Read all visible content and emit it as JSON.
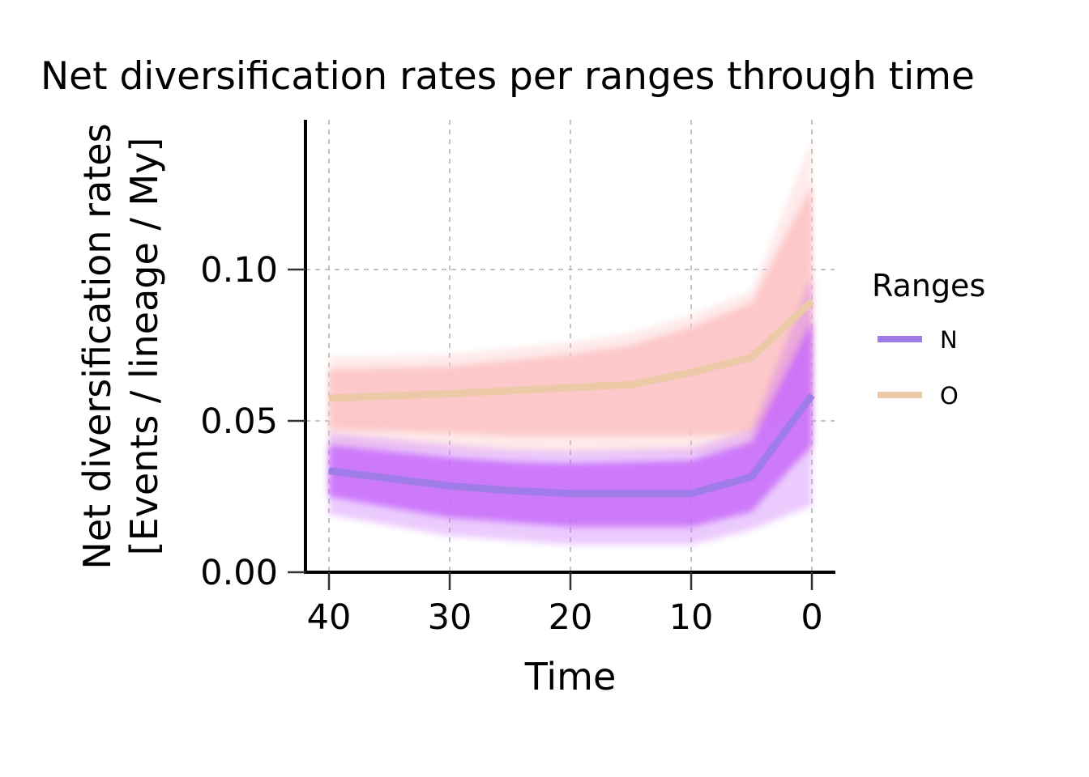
{
  "chart_data": {
    "type": "line",
    "title": "Net diversification rates per ranges through time",
    "xlabel": "Time",
    "ylabel_lines": [
      "Net diversification rates",
      "[Events / lineage / My]"
    ],
    "xlim": [
      42,
      -2
    ],
    "ylim": [
      -0.001,
      0.149
    ],
    "x_ticks": [
      40,
      30,
      20,
      10,
      0
    ],
    "x_tick_labels": [
      "40",
      "30",
      "20",
      "10",
      "0"
    ],
    "y_ticks": [
      0.0,
      0.05,
      0.1
    ],
    "y_tick_labels": [
      "0.00",
      "0.05",
      "0.10"
    ],
    "grid": true,
    "legend": {
      "title": "Ranges",
      "placement": "right"
    },
    "series": [
      {
        "name": "N",
        "color": "#a07ce8",
        "band_color": "#c86cfa",
        "x": [
          40,
          30,
          25,
          20,
          15,
          10,
          5,
          0
        ],
        "values": [
          0.0335,
          0.0285,
          0.027,
          0.026,
          0.026,
          0.026,
          0.0315,
          0.0585
        ],
        "band_upper": [
          0.042,
          0.038,
          0.0365,
          0.036,
          0.0365,
          0.037,
          0.043,
          0.083
        ],
        "band_lower": [
          0.025,
          0.018,
          0.0165,
          0.015,
          0.015,
          0.015,
          0.02,
          0.042
        ]
      },
      {
        "name": "O",
        "color": "#eccaa8",
        "band_color": "#fdc5c6",
        "x": [
          40,
          30,
          25,
          20,
          15,
          10,
          5,
          0
        ],
        "values": [
          0.0575,
          0.059,
          0.06,
          0.061,
          0.062,
          0.066,
          0.071,
          0.0895
        ],
        "band_upper": [
          0.067,
          0.068,
          0.07,
          0.072,
          0.075,
          0.081,
          0.089,
          0.128
        ],
        "band_lower": [
          0.047,
          0.046,
          0.045,
          0.045,
          0.045,
          0.045,
          0.046,
          0.058
        ]
      }
    ]
  }
}
